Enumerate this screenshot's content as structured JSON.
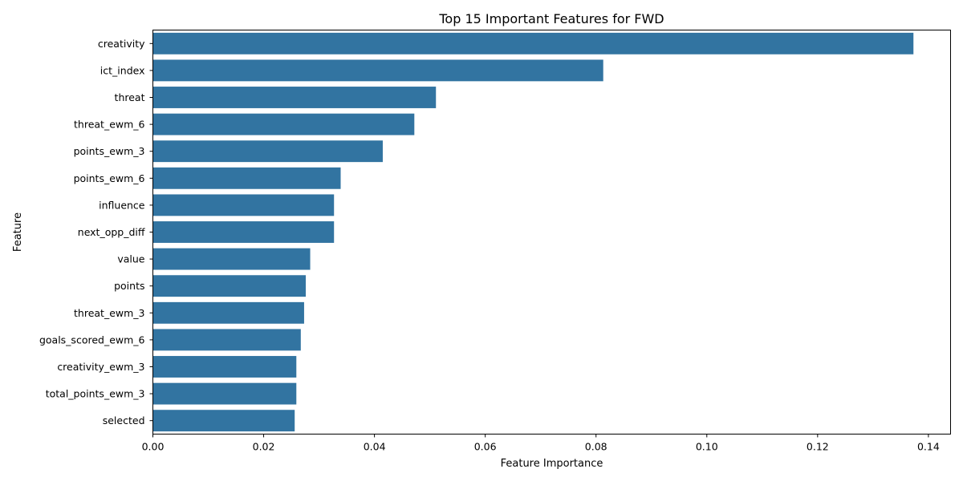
{
  "chart_data": {
    "type": "bar",
    "orientation": "horizontal",
    "title": "Top 15 Important Features for FWD",
    "xlabel": "Feature Importance",
    "ylabel": "Feature",
    "categories": [
      "creativity",
      "ict_index",
      "threat",
      "threat_ewm_6",
      "points_ewm_3",
      "points_ewm_6",
      "influence",
      "next_opp_diff",
      "value",
      "points",
      "threat_ewm_3",
      "goals_scored_ewm_6",
      "creativity_ewm_3",
      "total_points_ewm_3",
      "selected"
    ],
    "values": [
      0.1373,
      0.0813,
      0.0511,
      0.0472,
      0.0415,
      0.0339,
      0.0327,
      0.0327,
      0.0284,
      0.0276,
      0.0273,
      0.0267,
      0.0259,
      0.0259,
      0.0256
    ],
    "xlim": [
      0,
      0.144
    ],
    "xticks": [
      0.0,
      0.02,
      0.04,
      0.06,
      0.08,
      0.1,
      0.12,
      0.14
    ],
    "xtick_labels": [
      "0.00",
      "0.02",
      "0.04",
      "0.06",
      "0.08",
      "0.10",
      "0.12",
      "0.14"
    ],
    "bar_color": "#3274a1",
    "grid": false,
    "legend": false
  }
}
